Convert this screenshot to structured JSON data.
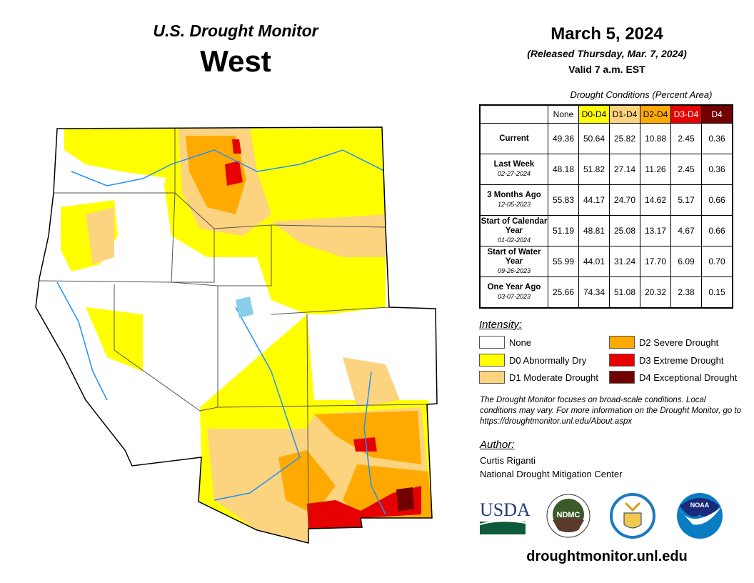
{
  "header": {
    "title": "U.S. Drought Monitor",
    "region": "West",
    "date": "March 5, 2024",
    "released": "(Released Thursday, Mar. 7, 2024)",
    "valid": "Valid 7 a.m. EST"
  },
  "table": {
    "caption": "Drought Conditions (Percent Area)",
    "columns": [
      "None",
      "D0-D4",
      "D1-D4",
      "D2-D4",
      "D3-D4",
      "D4"
    ],
    "rows": [
      {
        "label": "Current",
        "date": "",
        "values": [
          "49.36",
          "50.64",
          "25.82",
          "10.88",
          "2.45",
          "0.36"
        ]
      },
      {
        "label": "Last Week",
        "date": "02-27-2024",
        "values": [
          "48.18",
          "51.82",
          "27.14",
          "11.26",
          "2.45",
          "0.36"
        ]
      },
      {
        "label": "3 Months Ago",
        "date": "12-05-2023",
        "values": [
          "55.83",
          "44.17",
          "24.70",
          "14.62",
          "5.17",
          "0.66"
        ]
      },
      {
        "label": "Start of Calendar Year",
        "date": "01-02-2024",
        "values": [
          "51.19",
          "48.81",
          "25.08",
          "13.17",
          "4.67",
          "0.66"
        ]
      },
      {
        "label": "Start of Water Year",
        "date": "09-26-2023",
        "values": [
          "55.99",
          "44.01",
          "31.24",
          "17.70",
          "6.09",
          "0.70"
        ]
      },
      {
        "label": "One Year Ago",
        "date": "03-07-2023",
        "values": [
          "25.66",
          "74.34",
          "51.08",
          "20.32",
          "2.38",
          "0.15"
        ]
      }
    ]
  },
  "legend": {
    "title": "Intensity:",
    "items": [
      {
        "label": "None",
        "color": "#FFFFFF"
      },
      {
        "label": "D0 Abnormally Dry",
        "color": "#FFFF00"
      },
      {
        "label": "D1 Moderate Drought",
        "color": "#FCD37F"
      },
      {
        "label": "D2 Severe Drought",
        "color": "#FFAA00"
      },
      {
        "label": "D3 Extreme Drought",
        "color": "#E60000"
      },
      {
        "label": "D4 Exceptional Drought",
        "color": "#730000"
      }
    ]
  },
  "note": "The Drought Monitor focuses on broad-scale conditions. Local conditions may vary. For more information on the Drought Monitor, go to https://droughtmonitor.unl.edu/About.aspx",
  "author": {
    "label": "Author:",
    "name": "Curtis Riganti",
    "org": "National Drought Mitigation Center"
  },
  "logos": {
    "usda": "USDA",
    "ndmc": "NDMC",
    "noaa": "NOAA"
  },
  "url": "droughtmonitor.unl.edu"
}
